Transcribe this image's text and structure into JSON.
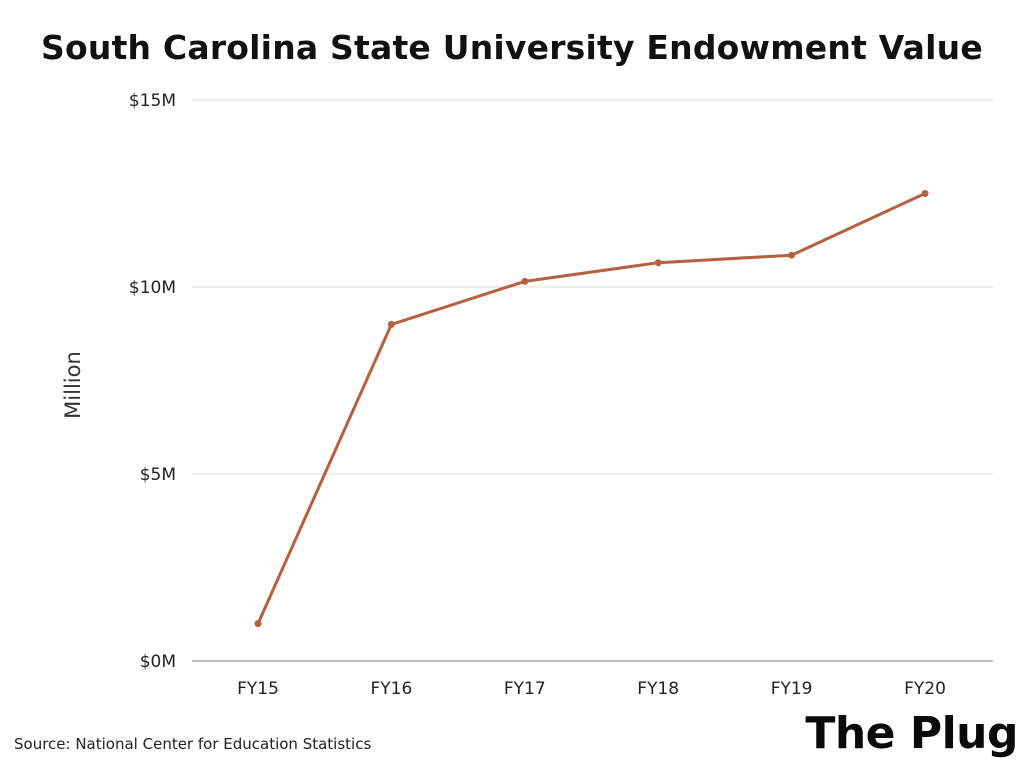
{
  "chart_data": {
    "type": "line",
    "title": "South Carolina State University Endowment Value",
    "ylabel": "Million",
    "xlabel": "",
    "categories": [
      "FY15",
      "FY16",
      "FY17",
      "FY18",
      "FY19",
      "FY20"
    ],
    "series": [
      {
        "values": [
          1.0,
          9.0,
          10.15,
          10.65,
          10.85,
          12.5
        ]
      }
    ],
    "ylim": [
      0,
      15
    ],
    "yticks": [
      0,
      5,
      10,
      15
    ],
    "ytick_labels": [
      "$0M",
      "$5M",
      "$10M",
      "$15M"
    ],
    "grid": true,
    "legend": "none",
    "line_color": "#b5603f"
  },
  "footer": {
    "source": "Source: National Center for Education Statistics",
    "brand": "The Plug"
  }
}
